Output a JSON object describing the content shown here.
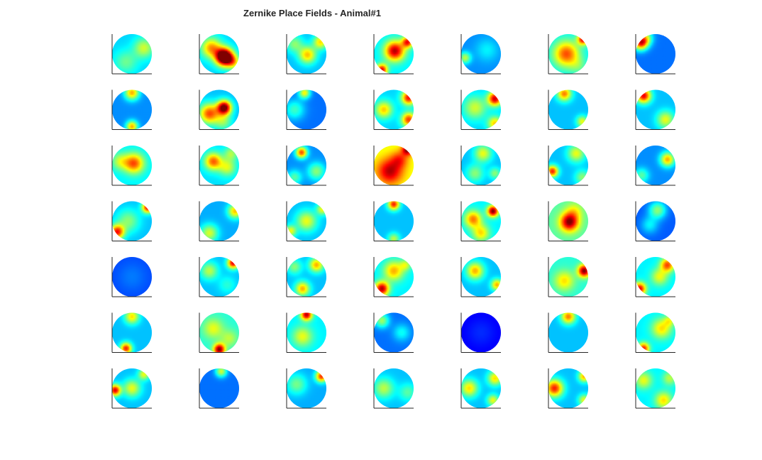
{
  "chart_data": {
    "type": "heatmap",
    "title": "Zernike Place Fields - Animal#1",
    "layout": {
      "rows": 7,
      "cols": 7
    },
    "colormap": "jet",
    "colormap_colors": [
      "#00008f",
      "#0000ff",
      "#00ffff",
      "#ffff00",
      "#ff0000",
      "#800000"
    ],
    "axes_color": "#262626",
    "xlabel": "",
    "ylabel": "",
    "panels": [
      {
        "base": 0.32,
        "blobs": [
          [
            0.6,
            -0.3,
            0.25,
            0.35
          ],
          [
            -0.3,
            0.4,
            0.15,
            0.4
          ]
        ]
      },
      {
        "base": 0.32,
        "blobs": [
          [
            0.25,
            0.15,
            0.95,
            0.3
          ],
          [
            -0.4,
            -0.3,
            0.4,
            0.35
          ],
          [
            0.7,
            0.4,
            0.3,
            0.25
          ]
        ]
      },
      {
        "base": 0.3,
        "blobs": [
          [
            0.05,
            0.05,
            0.38,
            0.3
          ],
          [
            0.7,
            -0.6,
            0.35,
            0.25
          ],
          [
            -0.6,
            -0.5,
            0.2,
            0.3
          ]
        ]
      },
      {
        "base": 0.35,
        "blobs": [
          [
            0.05,
            -0.15,
            0.6,
            0.35
          ],
          [
            -0.6,
            0.8,
            0.55,
            0.2
          ],
          [
            0.7,
            -0.6,
            0.5,
            0.2
          ]
        ]
      },
      {
        "base": 0.25,
        "blobs": [
          [
            -0.8,
            0.2,
            0.3,
            0.2
          ],
          [
            0.3,
            -0.2,
            0.1,
            0.4
          ]
        ]
      },
      {
        "base": 0.35,
        "blobs": [
          [
            -0.1,
            0.0,
            0.45,
            0.45
          ],
          [
            0.75,
            -0.75,
            0.55,
            0.2
          ],
          [
            0.5,
            0.6,
            0.1,
            0.3
          ]
        ]
      },
      {
        "base": 0.22,
        "blobs": [
          [
            -0.75,
            -0.55,
            0.6,
            0.25
          ],
          [
            -0.5,
            -0.8,
            0.3,
            0.25
          ]
        ]
      },
      {
        "base": 0.25,
        "blobs": [
          [
            0.0,
            -0.85,
            0.45,
            0.25
          ],
          [
            0.0,
            0.85,
            0.45,
            0.2
          ]
        ]
      },
      {
        "base": 0.3,
        "blobs": [
          [
            0.25,
            -0.1,
            0.75,
            0.25
          ],
          [
            -0.5,
            0.2,
            0.5,
            0.35
          ],
          [
            0.2,
            0.6,
            0.2,
            0.3
          ]
        ]
      },
      {
        "base": 0.22,
        "blobs": [
          [
            -0.1,
            -0.85,
            0.4,
            0.2
          ],
          [
            -0.6,
            0.0,
            0.2,
            0.35
          ]
        ]
      },
      {
        "base": 0.32,
        "blobs": [
          [
            0.75,
            -0.6,
            0.55,
            0.25
          ],
          [
            -0.5,
            0.0,
            0.35,
            0.3
          ],
          [
            0.75,
            0.5,
            0.5,
            0.25
          ]
        ]
      },
      {
        "base": 0.32,
        "blobs": [
          [
            0.7,
            -0.55,
            0.6,
            0.25
          ],
          [
            -0.3,
            -0.1,
            0.25,
            0.4
          ],
          [
            0.7,
            0.7,
            0.35,
            0.25
          ]
        ]
      },
      {
        "base": 0.3,
        "blobs": [
          [
            -0.2,
            -0.8,
            0.45,
            0.25
          ],
          [
            0.7,
            0.6,
            0.3,
            0.2
          ]
        ]
      },
      {
        "base": 0.3,
        "blobs": [
          [
            -0.6,
            -0.7,
            0.6,
            0.25
          ],
          [
            0.5,
            0.5,
            0.3,
            0.3
          ]
        ]
      },
      {
        "base": 0.35,
        "blobs": [
          [
            0.1,
            -0.1,
            0.45,
            0.35
          ],
          [
            -0.6,
            -0.2,
            0.2,
            0.3
          ]
        ]
      },
      {
        "base": 0.33,
        "blobs": [
          [
            -0.3,
            -0.2,
            0.45,
            0.3
          ],
          [
            0.4,
            0.1,
            0.25,
            0.3
          ],
          [
            0.6,
            -0.6,
            0.2,
            0.25
          ]
        ]
      },
      {
        "base": 0.25,
        "blobs": [
          [
            -0.25,
            -0.65,
            0.55,
            0.2
          ],
          [
            0.5,
            0.3,
            0.25,
            0.3
          ],
          [
            -0.6,
            0.6,
            0.2,
            0.25
          ]
        ]
      },
      {
        "base": 0.6,
        "blobs": [
          [
            -0.2,
            0.3,
            0.35,
            0.45
          ],
          [
            0.7,
            -0.8,
            0.4,
            0.2
          ],
          [
            0.3,
            -0.3,
            0.2,
            0.3
          ]
        ]
      },
      {
        "base": 0.3,
        "blobs": [
          [
            0.1,
            -0.6,
            0.3,
            0.3
          ],
          [
            -0.3,
            0.4,
            0.2,
            0.3
          ],
          [
            0.7,
            0.4,
            0.2,
            0.2
          ]
        ]
      },
      {
        "base": 0.3,
        "blobs": [
          [
            -0.8,
            0.3,
            0.55,
            0.2
          ],
          [
            0.4,
            -0.6,
            0.3,
            0.3
          ],
          [
            0.7,
            0.6,
            0.2,
            0.25
          ]
        ]
      },
      {
        "base": 0.25,
        "blobs": [
          [
            0.6,
            -0.3,
            0.45,
            0.25
          ],
          [
            -0.7,
            0.5,
            0.2,
            0.25
          ]
        ]
      },
      {
        "base": 0.3,
        "blobs": [
          [
            0.8,
            -0.7,
            0.6,
            0.2
          ],
          [
            -0.75,
            0.55,
            0.55,
            0.25
          ],
          [
            -0.2,
            0.0,
            0.2,
            0.4
          ]
        ]
      },
      {
        "base": 0.28,
        "blobs": [
          [
            0.8,
            -0.5,
            0.4,
            0.25
          ],
          [
            -0.5,
            0.6,
            0.3,
            0.3
          ]
        ]
      },
      {
        "base": 0.3,
        "blobs": [
          [
            0.0,
            0.0,
            0.3,
            0.35
          ],
          [
            0.8,
            -0.6,
            0.3,
            0.2
          ],
          [
            -0.8,
            0.5,
            0.3,
            0.2
          ]
        ]
      },
      {
        "base": 0.3,
        "blobs": [
          [
            0.0,
            -0.85,
            0.55,
            0.2
          ],
          [
            0.0,
            0.9,
            0.25,
            0.2
          ]
        ]
      },
      {
        "base": 0.35,
        "blobs": [
          [
            0.6,
            -0.5,
            0.65,
            0.2
          ],
          [
            -0.4,
            -0.1,
            0.4,
            0.3
          ],
          [
            0.0,
            0.6,
            0.3,
            0.3
          ]
        ]
      },
      {
        "base": 0.45,
        "blobs": [
          [
            0.05,
            0.05,
            0.55,
            0.32
          ],
          [
            0.3,
            -0.5,
            0.15,
            0.3
          ]
        ]
      },
      {
        "base": 0.2,
        "blobs": [
          [
            0.1,
            -0.55,
            0.3,
            0.3
          ],
          [
            -0.3,
            0.2,
            0.15,
            0.3
          ]
        ]
      },
      {
        "base": 0.18,
        "blobs": [
          [
            0.0,
            0.0,
            0.05,
            0.5
          ]
        ]
      },
      {
        "base": 0.3,
        "blobs": [
          [
            0.7,
            -0.7,
            0.6,
            0.2
          ],
          [
            -0.5,
            -0.3,
            0.25,
            0.3
          ],
          [
            0.4,
            0.4,
            0.1,
            0.3
          ]
        ]
      },
      {
        "base": 0.3,
        "blobs": [
          [
            0.5,
            -0.6,
            0.4,
            0.25
          ],
          [
            -0.2,
            0.6,
            0.4,
            0.25
          ],
          [
            -0.6,
            -0.5,
            0.2,
            0.25
          ]
        ]
      },
      {
        "base": 0.35,
        "blobs": [
          [
            -0.6,
            0.6,
            0.6,
            0.25
          ],
          [
            0.0,
            -0.3,
            0.35,
            0.35
          ],
          [
            0.6,
            -0.6,
            0.2,
            0.2
          ]
        ]
      },
      {
        "base": 0.3,
        "blobs": [
          [
            -0.3,
            -0.3,
            0.4,
            0.3
          ],
          [
            0.8,
            0.4,
            0.4,
            0.2
          ]
        ]
      },
      {
        "base": 0.4,
        "blobs": [
          [
            0.8,
            -0.3,
            0.6,
            0.22
          ],
          [
            -0.2,
            0.2,
            0.25,
            0.35
          ]
        ]
      },
      {
        "base": 0.35,
        "blobs": [
          [
            -0.8,
            0.6,
            0.55,
            0.22
          ],
          [
            0.6,
            -0.6,
            0.45,
            0.25
          ],
          [
            0.2,
            0.0,
            0.25,
            0.3
          ]
        ]
      },
      {
        "base": 0.3,
        "blobs": [
          [
            0.0,
            -0.8,
            0.35,
            0.25
          ],
          [
            -0.3,
            0.8,
            0.55,
            0.2
          ]
        ]
      },
      {
        "base": 0.4,
        "blobs": [
          [
            0.0,
            0.85,
            0.6,
            0.2
          ],
          [
            -0.3,
            -0.2,
            0.2,
            0.35
          ],
          [
            0.5,
            0.3,
            0.15,
            0.3
          ]
        ]
      },
      {
        "base": 0.35,
        "blobs": [
          [
            0.0,
            -0.9,
            0.6,
            0.2
          ],
          [
            -0.2,
            0.2,
            0.25,
            0.35
          ]
        ]
      },
      {
        "base": 0.22,
        "blobs": [
          [
            -0.6,
            -0.6,
            0.3,
            0.25
          ],
          [
            0.4,
            0.0,
            0.15,
            0.3
          ]
        ]
      },
      {
        "base": 0.1,
        "blobs": [
          [
            0.0,
            0.0,
            0.05,
            0.5
          ]
        ]
      },
      {
        "base": 0.3,
        "blobs": [
          [
            0.0,
            -0.8,
            0.45,
            0.25
          ]
        ]
      },
      {
        "base": 0.35,
        "blobs": [
          [
            0.3,
            -0.2,
            0.3,
            0.35
          ],
          [
            -0.6,
            0.8,
            0.5,
            0.2
          ],
          [
            0.7,
            -0.6,
            0.2,
            0.2
          ]
        ]
      },
      {
        "base": 0.3,
        "blobs": [
          [
            -0.85,
            0.1,
            0.6,
            0.2
          ],
          [
            0.0,
            0.0,
            0.3,
            0.3
          ],
          [
            0.6,
            -0.7,
            0.3,
            0.2
          ]
        ]
      },
      {
        "base": 0.22,
        "blobs": [
          [
            0.1,
            -0.85,
            0.35,
            0.2
          ]
        ]
      },
      {
        "base": 0.28,
        "blobs": [
          [
            0.75,
            -0.6,
            0.55,
            0.2
          ],
          [
            -0.5,
            -0.2,
            0.2,
            0.35
          ]
        ]
      },
      {
        "base": 0.3,
        "blobs": [
          [
            -0.5,
            0.0,
            0.25,
            0.35
          ],
          [
            0.7,
            0.2,
            0.15,
            0.3
          ]
        ]
      },
      {
        "base": 0.3,
        "blobs": [
          [
            -0.6,
            0.0,
            0.35,
            0.3
          ],
          [
            0.7,
            -0.5,
            0.35,
            0.25
          ],
          [
            0.6,
            0.6,
            0.3,
            0.2
          ]
        ]
      },
      {
        "base": 0.3,
        "blobs": [
          [
            -0.7,
            0.0,
            0.55,
            0.3
          ],
          [
            0.8,
            -0.6,
            0.4,
            0.2
          ],
          [
            0.8,
            0.6,
            0.3,
            0.2
          ]
        ]
      },
      {
        "base": 0.35,
        "blobs": [
          [
            0.4,
            0.6,
            0.3,
            0.3
          ],
          [
            -0.6,
            -0.4,
            0.25,
            0.3
          ],
          [
            0.7,
            -0.5,
            0.2,
            0.25
          ]
        ]
      }
    ]
  }
}
